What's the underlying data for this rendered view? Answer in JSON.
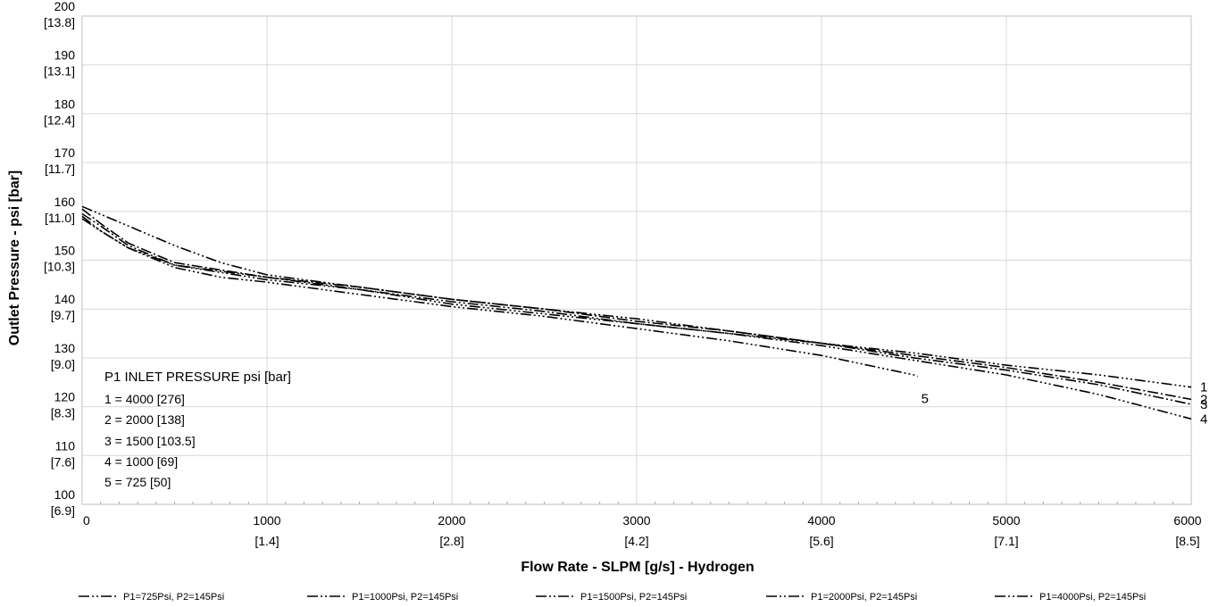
{
  "chart_data": {
    "type": "line",
    "title": "",
    "xlabel": "Flow Rate - SLPM [g/s] - Hydrogen",
    "ylabel": "Outlet Pressure - psi [bar]",
    "xlim": [
      0,
      6000
    ],
    "ylim": [
      100,
      200
    ],
    "grid": true,
    "legend_position": "bottom",
    "x_ticks": [
      {
        "value": 0,
        "label": "0",
        "sub": ""
      },
      {
        "value": 1000,
        "label": "1000",
        "sub": "[1.4]"
      },
      {
        "value": 2000,
        "label": "2000",
        "sub": "[2.8]"
      },
      {
        "value": 3000,
        "label": "3000",
        "sub": "[4.2]"
      },
      {
        "value": 4000,
        "label": "4000",
        "sub": "[5.6]"
      },
      {
        "value": 5000,
        "label": "5000",
        "sub": "[7.1]"
      },
      {
        "value": 6000,
        "label": "6000",
        "sub": "[8.5]"
      }
    ],
    "y_ticks": [
      {
        "value": 100,
        "label": "100",
        "sub": "[6.9]"
      },
      {
        "value": 110,
        "label": "110",
        "sub": "[7.6]"
      },
      {
        "value": 120,
        "label": "120",
        "sub": "[8.3]"
      },
      {
        "value": 130,
        "label": "130",
        "sub": "[9.0]"
      },
      {
        "value": 140,
        "label": "140",
        "sub": "[9.7]"
      },
      {
        "value": 150,
        "label": "150",
        "sub": "[10.3]"
      },
      {
        "value": 160,
        "label": "160",
        "sub": "[11.0]"
      },
      {
        "value": 170,
        "label": "170",
        "sub": "[11.7]"
      },
      {
        "value": 180,
        "label": "180",
        "sub": "[12.4]"
      },
      {
        "value": 190,
        "label": "190",
        "sub": "[13.1]"
      },
      {
        "value": 200,
        "label": "200",
        "sub": "[13.8]"
      }
    ],
    "series": [
      {
        "name": "P1=725Psi, P2=145Psi",
        "curve_label": "5",
        "dash": "12 3 2 3 2 3 2 3",
        "points": [
          [
            0,
            159
          ],
          [
            100,
            156
          ],
          [
            250,
            152.5
          ],
          [
            500,
            148.5
          ],
          [
            750,
            146.5
          ],
          [
            1000,
            145.5
          ],
          [
            1500,
            143
          ],
          [
            2000,
            140.5
          ],
          [
            2500,
            138.5
          ],
          [
            3000,
            136
          ],
          [
            3500,
            133.5
          ],
          [
            4000,
            130.5
          ],
          [
            4500,
            126.5
          ],
          [
            4520,
            126.2
          ]
        ]
      },
      {
        "name": "P1=1000Psi, P2=145Psi",
        "curve_label": "4",
        "dash": "12 3 2 3 2 3 2 3",
        "points": [
          [
            0,
            158.5
          ],
          [
            100,
            156
          ],
          [
            250,
            152.5
          ],
          [
            500,
            149
          ],
          [
            1000,
            146
          ],
          [
            1500,
            144
          ],
          [
            2000,
            141
          ],
          [
            2500,
            139
          ],
          [
            3000,
            137
          ],
          [
            3500,
            135
          ],
          [
            4000,
            132.5
          ],
          [
            4500,
            129.5
          ],
          [
            5000,
            126.5
          ],
          [
            5500,
            122.5
          ],
          [
            6000,
            117.5
          ]
        ]
      },
      {
        "name": "P1=1500Psi, P2=145Psi",
        "curve_label": "3",
        "dash": "12 3 2 3 2 3",
        "points": [
          [
            0,
            159.5
          ],
          [
            100,
            157
          ],
          [
            250,
            153
          ],
          [
            500,
            149
          ],
          [
            1000,
            146.5
          ],
          [
            1500,
            144
          ],
          [
            2000,
            141.5
          ],
          [
            2500,
            139.5
          ],
          [
            3000,
            137
          ],
          [
            3500,
            135
          ],
          [
            4000,
            133
          ],
          [
            4500,
            130
          ],
          [
            5000,
            127.5
          ],
          [
            5500,
            124.5
          ],
          [
            6000,
            120.5
          ]
        ]
      },
      {
        "name": "P1=2000Psi, P2=145Psi",
        "curve_label": "2",
        "dash": "12 3 2 3",
        "points": [
          [
            0,
            160.5
          ],
          [
            100,
            157.5
          ],
          [
            250,
            153.5
          ],
          [
            500,
            149.5
          ],
          [
            1000,
            146.5
          ],
          [
            1500,
            144.5
          ],
          [
            2000,
            142
          ],
          [
            2500,
            140
          ],
          [
            3000,
            137.5
          ],
          [
            3500,
            135.5
          ],
          [
            4000,
            133
          ],
          [
            4500,
            130.5
          ],
          [
            5000,
            128
          ],
          [
            5500,
            125
          ],
          [
            6000,
            121.5
          ]
        ]
      },
      {
        "name": "P1=4000Psi, P2=145Psi",
        "curve_label": "1",
        "dash": "12 3 2 3 2 3 2 3",
        "points": [
          [
            0,
            161
          ],
          [
            250,
            157
          ],
          [
            500,
            153
          ],
          [
            750,
            149.5
          ],
          [
            1000,
            147
          ],
          [
            1500,
            144.5
          ],
          [
            2000,
            142
          ],
          [
            2500,
            140
          ],
          [
            3000,
            138
          ],
          [
            3500,
            135.5
          ],
          [
            4000,
            133
          ],
          [
            4500,
            131
          ],
          [
            5000,
            128.5
          ],
          [
            5500,
            126.5
          ],
          [
            6000,
            124
          ]
        ]
      }
    ],
    "annotations": {
      "title": "P1 INLET PRESSURE psi [bar]",
      "lines": [
        "1 = 4000 [276]",
        "2 = 2000 [138]",
        "3 = 1500 [103.5]",
        "4 = 1000 [69]",
        "5 = 725 [50]"
      ]
    }
  }
}
